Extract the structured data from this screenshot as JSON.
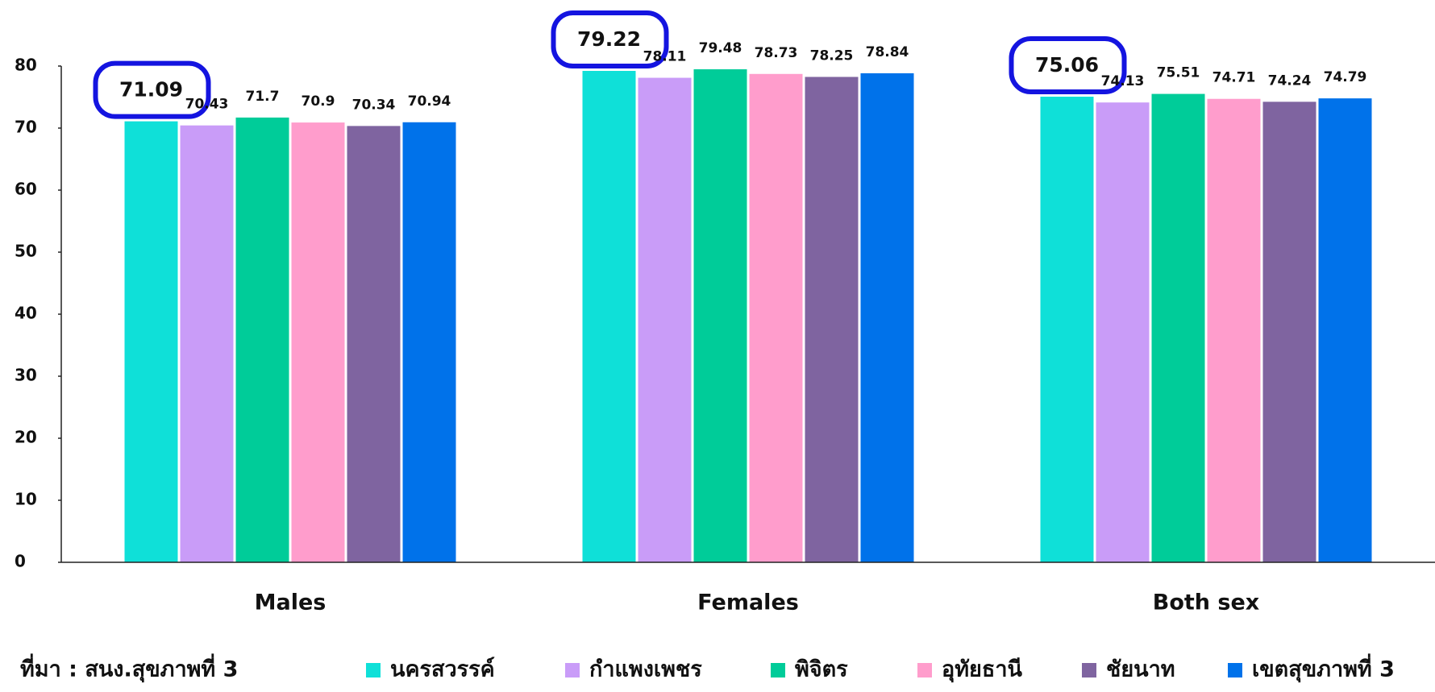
{
  "chart_data": {
    "type": "bar",
    "categories": [
      "Males",
      "Females",
      "Both sex"
    ],
    "series": [
      {
        "name": "นครสวรรค์",
        "color": "#0fe0d8",
        "values": [
          71.09,
          79.22,
          75.06
        ]
      },
      {
        "name": "กำแพงเพชร",
        "color": "#c99cf8",
        "values": [
          70.43,
          78.11,
          74.13
        ]
      },
      {
        "name": "พิจิตร",
        "color": "#00cc99",
        "values": [
          71.7,
          79.48,
          75.51
        ]
      },
      {
        "name": "อุทัยธานี",
        "color": "#ff9dcc",
        "values": [
          70.9,
          78.73,
          74.71
        ]
      },
      {
        "name": "ชัยนาท",
        "color": "#7f64a0",
        "values": [
          70.34,
          78.25,
          74.24
        ]
      },
      {
        "name": "เขตสุขภาพที่ 3",
        "color": "#0072ea",
        "values": [
          70.94,
          78.84,
          74.79
        ]
      }
    ],
    "ylim": [
      0,
      80
    ],
    "yticks": [
      0,
      10,
      20,
      30,
      40,
      50,
      60,
      70,
      80
    ],
    "source": "ที่มา : สนง.สุขภาพที่ 3",
    "legend": "bottom"
  }
}
